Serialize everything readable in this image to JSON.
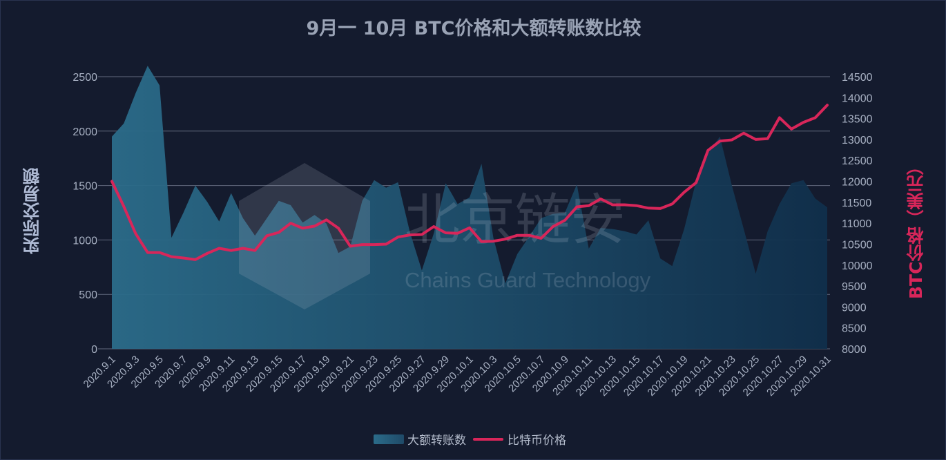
{
  "chart_data": {
    "type": "area+line",
    "title": "9月一 10月 BTC价格和大额转账数比较",
    "ylabel_left": "实际交易额",
    "ylabel_right": "BTC价格（美元）",
    "ylim_left": [
      0,
      2500
    ],
    "ylim_right": [
      8000,
      14500
    ],
    "yticks_left": [
      "0",
      "500",
      "1000",
      "1500",
      "2000",
      "2500"
    ],
    "yticks_right": [
      "8000",
      "8500",
      "9000",
      "9500",
      "10000",
      "10500",
      "11000",
      "11500",
      "12000",
      "12500",
      "13000",
      "13500",
      "14000",
      "14500"
    ],
    "grid": true,
    "legend_position": "bottom",
    "x": [
      "2020.9.1",
      "2020.9.2",
      "2020.9.3",
      "2020.9.4",
      "2020.9.5",
      "2020.9.6",
      "2020.9.7",
      "2020.9.8",
      "2020.9.9",
      "2020.9.10",
      "2020.9.11",
      "2020.9.12",
      "2020.9.13",
      "2020.9.14",
      "2020.9.15",
      "2020.9.16",
      "2020.9.17",
      "2020.9.18",
      "2020.9.19",
      "2020.9.20",
      "2020.9.21",
      "2020.9.22",
      "2020.9.23",
      "2020.9.24",
      "2020.9.25",
      "2020.9.26",
      "2020.9.27",
      "2020.9.28",
      "2020.9.29",
      "2020.9.30",
      "2020.10.1",
      "2020.10.2",
      "2020.10.3",
      "2020.10.4",
      "2020.10.5",
      "2020.10.6",
      "2020.10.7",
      "2020.10.8",
      "2020.10.9",
      "2020.10.10",
      "2020.10.11",
      "2020.10.12",
      "2020.10.13",
      "2020.10.14",
      "2020.10.15",
      "2020.10.16",
      "2020.10.17",
      "2020.10.18",
      "2020.10.19",
      "2020.10.20",
      "2020.10.21",
      "2020.10.22",
      "2020.10.23",
      "2020.10.24",
      "2020.10.25",
      "2020.10.26",
      "2020.10.27",
      "2020.10.28",
      "2020.10.29",
      "2020.10.30",
      "2020.10.31"
    ],
    "xtick_labels": [
      "2020.9.1",
      "2020.9.3",
      "2020.9.5",
      "2020.9.7",
      "2020.9.9",
      "2020.9.11",
      "2020.9.13",
      "2020.9.15",
      "2020.9.17",
      "2020.9.19",
      "2020.9.21",
      "2020.9.23",
      "2020.9.25",
      "2020.9.27",
      "2020.9.29",
      "2020.10.1",
      "2020.10.3",
      "2020.10.5",
      "2020.10.7",
      "2020.10.9",
      "2020.10.11",
      "2020.10.13",
      "2020.10.15",
      "2020.10.17",
      "2020.10.19",
      "2020.10.21",
      "2020.10.23",
      "2020.10.25",
      "2020.10.27",
      "2020.10.29",
      "2020.10.31"
    ],
    "series": [
      {
        "name": "大额转账数",
        "type": "area",
        "axis": "left",
        "values": [
          1950,
          2070,
          2350,
          2600,
          2420,
          1020,
          1250,
          1500,
          1350,
          1170,
          1430,
          1200,
          1040,
          1200,
          1360,
          1320,
          1160,
          1230,
          1150,
          880,
          940,
          1360,
          1550,
          1480,
          1530,
          1070,
          720,
          1060,
          1520,
          1330,
          1390,
          1700,
          1020,
          600,
          870,
          1030,
          1200,
          1240,
          1250,
          1510,
          920,
          1110,
          1100,
          1080,
          1050,
          1180,
          830,
          760,
          1100,
          1540,
          1800,
          1950,
          1500,
          1100,
          690,
          1080,
          1330,
          1520,
          1550,
          1380,
          1300
        ]
      },
      {
        "name": "比特币价格",
        "type": "line",
        "axis": "right",
        "values": [
          12000,
          11400,
          10750,
          10300,
          10300,
          10200,
          10170,
          10130,
          10280,
          10400,
          10350,
          10400,
          10350,
          10700,
          10780,
          11000,
          10880,
          10930,
          11080,
          10880,
          10450,
          10490,
          10490,
          10500,
          10670,
          10720,
          10730,
          10920,
          10770,
          10760,
          10890,
          10560,
          10570,
          10620,
          10710,
          10710,
          10640,
          10920,
          11070,
          11390,
          11420,
          11580,
          11440,
          11440,
          11420,
          11360,
          11350,
          11460,
          11740,
          11970,
          12740,
          12960,
          12990,
          13150,
          13000,
          13020,
          13520,
          13250,
          13410,
          13520,
          13820
        ]
      }
    ],
    "colors": {
      "area": "#2b6c8a",
      "line": "#d8265a",
      "background": "#141b2e",
      "grid": "#7c8599"
    },
    "watermark": {
      "main": "北京链安",
      "sub": "Chains Guard Technology"
    }
  }
}
